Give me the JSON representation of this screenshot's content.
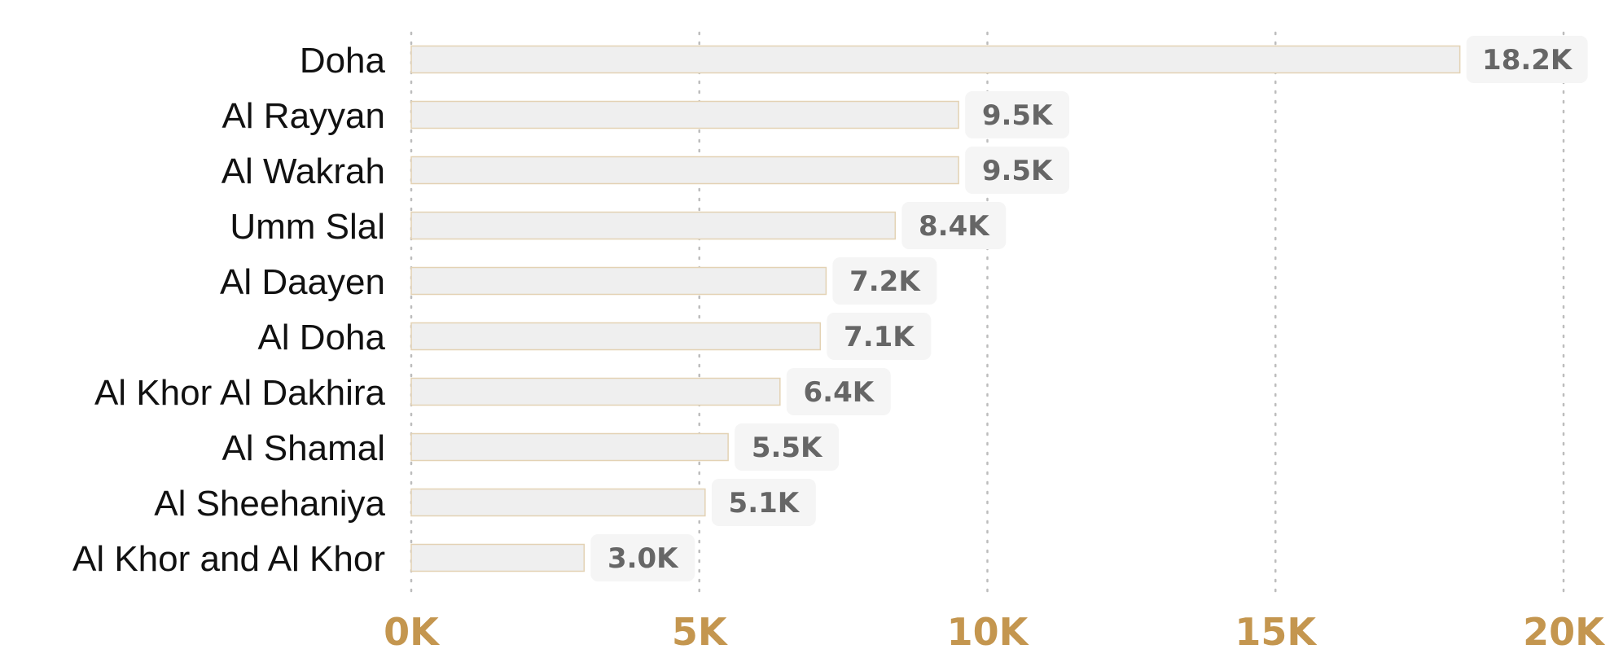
{
  "chart_data": {
    "type": "bar",
    "orientation": "horizontal",
    "categories": [
      "Doha",
      "Al Rayyan",
      "Al Wakrah",
      "Umm Slal",
      "Al Daayen",
      "Al Doha",
      "Al Khor Al Dakhira",
      "Al Shamal",
      "Al Sheehaniya",
      "Al Khor and Al Khor"
    ],
    "values": [
      18200,
      9500,
      9500,
      8400,
      7200,
      7100,
      6400,
      5500,
      5100,
      3000
    ],
    "value_labels": [
      "18.2K",
      "9.5K",
      "9.5K",
      "8.4K",
      "7.2K",
      "7.1K",
      "6.4K",
      "5.5K",
      "5.1K",
      "3.0K"
    ],
    "x_ticks": [
      0,
      5000,
      10000,
      15000,
      20000
    ],
    "x_tick_labels": [
      "0K",
      "5K",
      "10K",
      "15K",
      "20K"
    ],
    "xlim": [
      0,
      20000
    ],
    "grid": "vertical-dotted",
    "title": "",
    "xlabel": "",
    "ylabel": "",
    "colors": {
      "bar_fill": "#efefef",
      "bar_stroke": "#e3d2b4",
      "tick_label": "#c4964f",
      "value_label": "#666666",
      "value_box": "#f5f5f5",
      "category_label": "#111111",
      "gridline": "#bdbdbd"
    }
  }
}
